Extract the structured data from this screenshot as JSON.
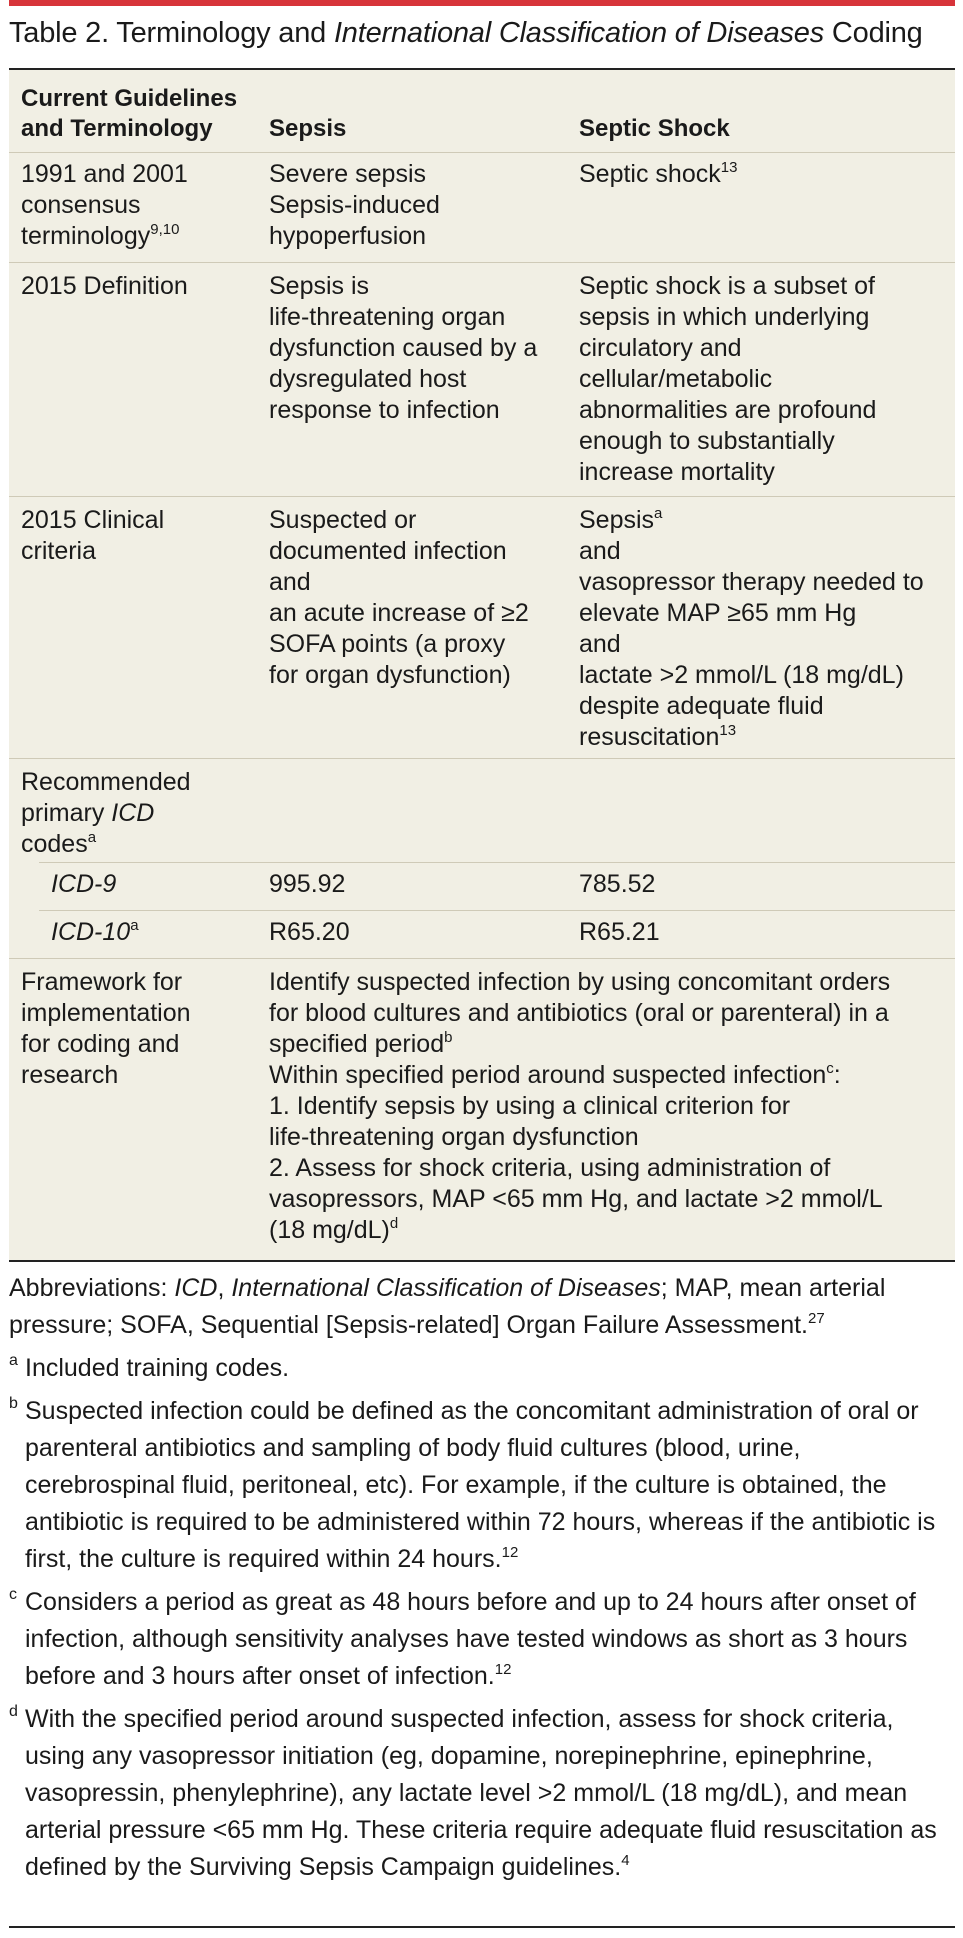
{
  "title": {
    "part1": "Table 2. Terminology and ",
    "part2": "International Classification of Diseases",
    "part3": " Coding"
  },
  "table": {
    "headers": {
      "col1_line1": "Current Guidelines",
      "col1_line2": "and Terminology",
      "col2": "Sepsis",
      "col3": "Septic Shock"
    },
    "rows": {
      "consensus": {
        "label": "1991 and 2001\nconsensus\nterminology",
        "label_sup": "9,10",
        "sepsis": "Severe sepsis\nSepsis-induced\nhypoperfusion",
        "shock": "Septic shock",
        "shock_sup": "13"
      },
      "definition": {
        "label": "2015 Definition",
        "sepsis": "Sepsis is\nlife-threatening organ\ndysfunction caused by a\ndysregulated host\nresponse to infection",
        "shock": "Septic shock is a subset of\nsepsis in which underlying\ncirculatory and\ncellular/metabolic\nabnormalities are profound\nenough to substantially\nincrease mortality"
      },
      "criteria": {
        "label": "2015 Clinical\ncriteria",
        "sepsis": "Suspected or\ndocumented infection\nand\nan acute increase of ≥2\nSOFA points (a proxy\nfor organ dysfunction)",
        "shock_line1": "Sepsis",
        "shock_line1_sup": "a",
        "shock_rest": "and\nvasopressor therapy needed to\nelevate MAP ≥65 mm Hg\nand\nlactate >2 mmol/L (18 mg/dL)\ndespite adequate fluid\nresuscitation",
        "shock_sup": "13"
      },
      "icd": {
        "label_line1": "Recommended",
        "label_line2a": "primary ",
        "label_line2b": "ICD",
        "label_line3": "codes",
        "label_sup": "a"
      },
      "icd9": {
        "label": "ICD-9",
        "sepsis": "995.92",
        "shock": "785.52"
      },
      "icd10": {
        "label": "ICD-10",
        "label_sup": "a",
        "sepsis": "R65.20",
        "shock": "R65.21"
      },
      "framework": {
        "label": "Framework for\nimplementation\nfor coding and\nresearch",
        "text1": "Identify suspected infection by using concomitant orders\nfor blood cultures and antibiotics (oral or parenteral) in a\nspecified period",
        "text1_sup": "b",
        "text2": "Within specified period around suspected infection",
        "text2_sup": "c",
        "text2_colon": ":",
        "text3": "1. Identify sepsis by using a clinical criterion for\nlife-threatening organ dysfunction\n2. Assess for shock criteria, using administration of\nvasopressors, MAP <65 mm Hg, and lactate >2 mmol/L\n(18 mg/dL)",
        "text3_sup": "d"
      }
    }
  },
  "notes": {
    "abbr_prefix": "Abbreviations: ",
    "abbr_icd": "ICD",
    "abbr_sep": ", ",
    "abbr_icd_full": "International Classification of Diseases",
    "abbr_rest": "; MAP, mean arterial pressure; SOFA, Sequential [Sepsis-related] Organ Failure Assessment.",
    "abbr_sup": "27",
    "a_mark": "a",
    "a_text": "Included training codes.",
    "b_mark": "b",
    "b_text": "Suspected infection could be defined as the concomitant administration of oral or parenteral antibiotics and sampling of body fluid cultures (blood, urine, cerebrospinal fluid, peritoneal, etc). For example, if the culture is obtained, the antibiotic is required to be administered within 72 hours, whereas if the antibiotic is first, the culture is required within 24 hours.",
    "b_sup": "12",
    "c_mark": "c",
    "c_text": "Considers a period as great as 48 hours before and up to 24 hours after onset of infection, although sensitivity analyses have tested windows as short as 3 hours before and 3 hours after onset of infection.",
    "c_sup": "12",
    "d_mark": "d",
    "d_text": "With the specified period around suspected infection, assess for shock criteria, using any vasopressor initiation (eg, dopamine, norepinephrine, epinephrine, vasopressin, phenylephrine), any lactate level >2 mmol/L (18 mg/dL), and mean arterial pressure <65 mm Hg. These criteria require adequate fluid resuscitation as defined by the Surviving Sepsis Campaign guidelines.",
    "d_sup": "4"
  }
}
